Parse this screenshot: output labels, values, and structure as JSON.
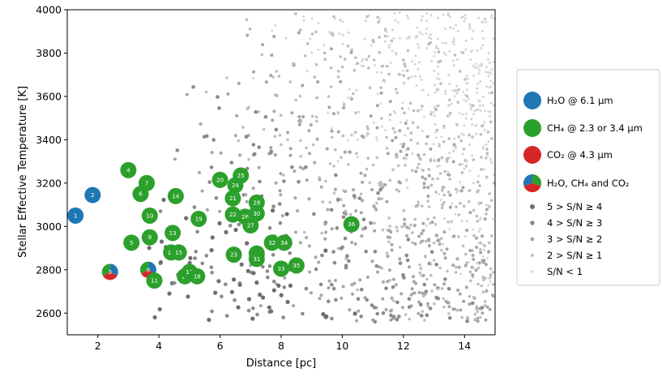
{
  "chart_data": {
    "type": "scatter",
    "title": "",
    "xlabel": "Distance [pc]",
    "ylabel": "Stellar Effective Temperature [K]",
    "xlim": [
      1,
      15
    ],
    "ylim": [
      2500,
      4000
    ],
    "xticks": [
      "2",
      "4",
      "6",
      "8",
      "10",
      "12",
      "14"
    ],
    "yticks": [
      "2600",
      "2800",
      "3000",
      "3200",
      "3400",
      "3600",
      "3800",
      "4000"
    ],
    "grid": false,
    "legend_position": "right",
    "colors": {
      "h2o": "#1f77b4",
      "ch4": "#2ca02c",
      "co2": "#d62728",
      "sn5": "#6e6e6e",
      "sn4": "#8a8a8a",
      "sn3": "#a6a6a6",
      "sn2": "#bdbdbd",
      "sn1": "#d5d5d5"
    },
    "legend": {
      "h2o": "H₂O @ 6.1 μm",
      "ch4": "CH₄ @ 2.3 or 3.4 μm",
      "co2": "CO₂ @ 4.3 μm",
      "all": "H₂O, CH₄ and CO₂",
      "sn5": "5 > S/N ≥ 4",
      "sn4": "4 > S/N ≥ 3",
      "sn3": "3 > S/N ≥ 2",
      "sn2": "2 > S/N ≥ 1",
      "sn1": "S/N < 1"
    },
    "targets": [
      {
        "label": "1",
        "x": 1.27,
        "y": 3050,
        "cls": "h2o"
      },
      {
        "label": "2",
        "x": 1.83,
        "y": 3145,
        "cls": "h2o"
      },
      {
        "label": "3",
        "x": 2.4,
        "y": 2790,
        "cls": "all"
      },
      {
        "label": "4",
        "x": 3.0,
        "y": 3260,
        "cls": "ch4"
      },
      {
        "label": "5",
        "x": 3.1,
        "y": 2925,
        "cls": "ch4"
      },
      {
        "label": "6",
        "x": 3.4,
        "y": 3150,
        "cls": "ch4"
      },
      {
        "label": "7",
        "x": 3.6,
        "y": 3200,
        "cls": "ch4"
      },
      {
        "label": "8",
        "x": 3.65,
        "y": 2800,
        "cls": "all"
      },
      {
        "label": "9",
        "x": 3.7,
        "y": 2950,
        "cls": "ch4"
      },
      {
        "label": "10",
        "x": 3.7,
        "y": 3050,
        "cls": "ch4"
      },
      {
        "label": "11",
        "x": 3.85,
        "y": 2750,
        "cls": "ch4"
      },
      {
        "label": "12",
        "x": 4.4,
        "y": 2880,
        "cls": "ch4"
      },
      {
        "label": "13",
        "x": 4.45,
        "y": 2970,
        "cls": "ch4"
      },
      {
        "label": "14",
        "x": 4.55,
        "y": 3140,
        "cls": "ch4"
      },
      {
        "label": "15",
        "x": 4.65,
        "y": 2880,
        "cls": "ch4"
      },
      {
        "label": "16",
        "x": 4.85,
        "y": 2770,
        "cls": "ch4"
      },
      {
        "label": "17",
        "x": 5.0,
        "y": 2790,
        "cls": "ch4"
      },
      {
        "label": "18",
        "x": 5.25,
        "y": 2770,
        "cls": "ch4"
      },
      {
        "label": "19",
        "x": 5.3,
        "y": 3035,
        "cls": "ch4"
      },
      {
        "label": "20",
        "x": 6.0,
        "y": 3215,
        "cls": "ch4"
      },
      {
        "label": "21",
        "x": 6.42,
        "y": 3130,
        "cls": "ch4"
      },
      {
        "label": "22",
        "x": 6.42,
        "y": 3055,
        "cls": "ch4"
      },
      {
        "label": "23",
        "x": 6.45,
        "y": 2870,
        "cls": "ch4"
      },
      {
        "label": "24",
        "x": 6.5,
        "y": 3190,
        "cls": "ch4"
      },
      {
        "label": "25",
        "x": 6.68,
        "y": 3235,
        "cls": "ch4"
      },
      {
        "label": "26",
        "x": 6.82,
        "y": 3045,
        "cls": "ch4"
      },
      {
        "label": "27",
        "x": 7.0,
        "y": 3005,
        "cls": "ch4"
      },
      {
        "label": "28",
        "x": 7.2,
        "y": 3110,
        "cls": "ch4"
      },
      {
        "label": "29",
        "x": 7.2,
        "y": 2875,
        "cls": "ch4"
      },
      {
        "label": "30",
        "x": 7.2,
        "y": 3060,
        "cls": "ch4"
      },
      {
        "label": "31",
        "x": 7.2,
        "y": 2850,
        "cls": "ch4"
      },
      {
        "label": "32",
        "x": 7.7,
        "y": 2925,
        "cls": "ch4"
      },
      {
        "label": "33",
        "x": 8.0,
        "y": 2805,
        "cls": "ch4"
      },
      {
        "label": "34",
        "x": 8.1,
        "y": 2925,
        "cls": "ch4"
      },
      {
        "label": "35",
        "x": 8.5,
        "y": 2820,
        "cls": "ch4"
      },
      {
        "label": "36",
        "x": 10.3,
        "y": 3010,
        "cls": "ch4"
      }
    ]
  }
}
